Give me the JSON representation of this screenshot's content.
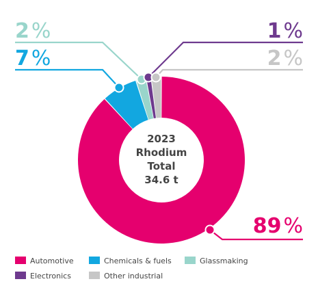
{
  "chart_data": {
    "type": "pie",
    "variant": "donut",
    "center_label": [
      "2023",
      "Rhodium",
      "Total",
      "34.6 t"
    ],
    "slices": [
      {
        "name": "Automotive",
        "value": 89,
        "label_value": "89",
        "label_unit": "%",
        "color": "#e5006e"
      },
      {
        "name": "Chemicals & fuels",
        "value": 7,
        "label_value": "7",
        "label_unit": "%",
        "color": "#12a7e0"
      },
      {
        "name": "Glassmaking",
        "value": 2,
        "label_value": "2",
        "label_unit": "%",
        "color": "#99d5cb"
      },
      {
        "name": "Electronics",
        "value": 1,
        "label_value": "1",
        "label_unit": "%",
        "color": "#6e3a8e"
      },
      {
        "name": "Other industrial",
        "value": 2,
        "label_value": "2",
        "label_unit": "%",
        "color": "#c6c6c6"
      }
    ],
    "legend": {
      "placement": "bottom-left",
      "rows": [
        [
          "Automotive",
          "Chemicals & fuels",
          "Glassmaking"
        ],
        [
          "Electronics",
          "Other industrial"
        ]
      ]
    }
  }
}
